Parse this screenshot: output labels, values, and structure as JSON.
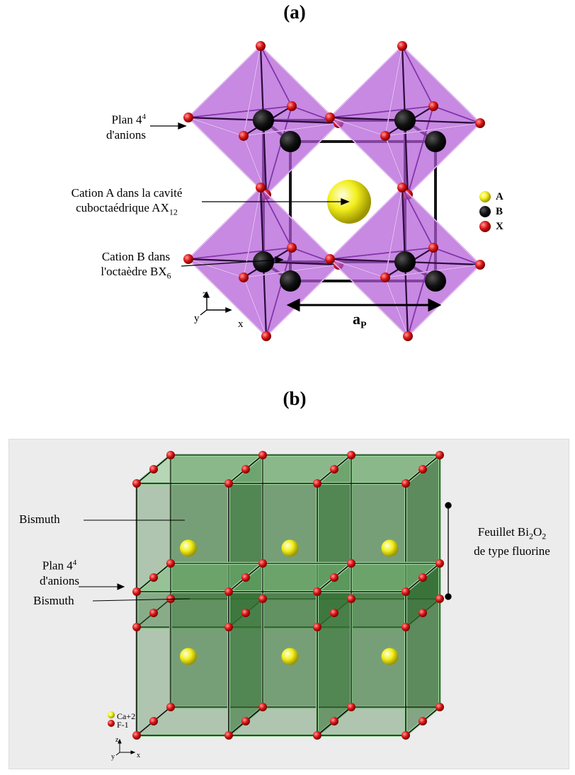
{
  "panel_a": {
    "label": "(a)",
    "plan_anions": [
      "Plan 4",
      "4",
      "d'anions"
    ],
    "cation_a": [
      "Cation A dans la cavité",
      "cuboctaédrique AX",
      "12"
    ],
    "cation_b": [
      "Cation B dans",
      "l'octaèdre BX",
      "6"
    ],
    "lattice_param": [
      "a",
      "P"
    ],
    "axes": {
      "z": "z",
      "y": "y",
      "x": "x"
    },
    "legend": [
      {
        "symbol": "A",
        "color": "#f2ef1c"
      },
      {
        "symbol": "B",
        "color": "#111111"
      },
      {
        "symbol": "X",
        "color": "#d91515"
      }
    ],
    "colors": {
      "octahedron": "#b05ad6",
      "octahedron_edge": "#6a1f8f",
      "anion": "#d91515"
    }
  },
  "panel_b": {
    "label": "(b)",
    "bismuth_top": "Bismuth",
    "plan_anions": [
      "Plan 4",
      "4",
      "d'anions"
    ],
    "bismuth_mid": "Bismuth",
    "feuillet": [
      "Feuillet Bi",
      "2",
      "O",
      "2",
      "de type fluorine"
    ],
    "legend": [
      {
        "label": "Ca+2",
        "color": "#f2ef1c"
      },
      {
        "label": "F-1",
        "color": "#d91515"
      }
    ],
    "axes": {
      "z": "z",
      "y": "y",
      "x": "x"
    },
    "colors": {
      "cube_face": "#2f6b2f",
      "cube_edge": "#9fd89f",
      "cation": "#f2ef1c",
      "anion": "#d91515"
    }
  }
}
